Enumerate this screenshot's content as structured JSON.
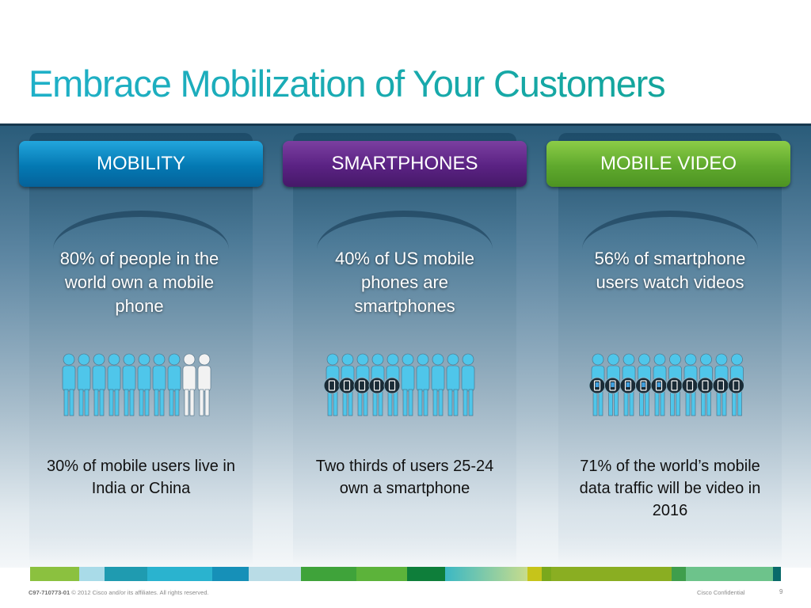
{
  "title": "Embrace Mobilization of Your Customers",
  "columns": [
    {
      "header": "MOBILITY",
      "stat": "80% of people in the world own a mobile phone",
      "sub": "30% of mobile users live in India or China"
    },
    {
      "header": "SMARTPHONES",
      "stat": "40% of US mobile phones are smartphones",
      "sub": "Two thirds of users 25-24 own a smartphone"
    },
    {
      "header": "MOBILE VIDEO",
      "stat": "56% of smartphone users watch videos",
      "sub": "71% of the world’s mobile data traffic will be video in 2016"
    }
  ],
  "graphics": [
    {
      "people": 10,
      "highlighted": 8,
      "phones": 0
    },
    {
      "people": 10,
      "highlighted": 10,
      "phones": 5
    },
    {
      "people": 10,
      "highlighted": 10,
      "phones": 10
    }
  ],
  "colors": {
    "title": "#1aa7b8",
    "mobility": "#0479b3",
    "smartphones": "#5a2283",
    "mobile_video": "#5fa92d",
    "person_highlight": "#4fc6ea",
    "person_plain": "#f2f2f2"
  },
  "footer": {
    "code": "C97-710773-01",
    "copyright": "© 2012 Cisco and/or its affiliates. All rights reserved.",
    "confidential": "Cisco Confidential",
    "page": "9"
  }
}
